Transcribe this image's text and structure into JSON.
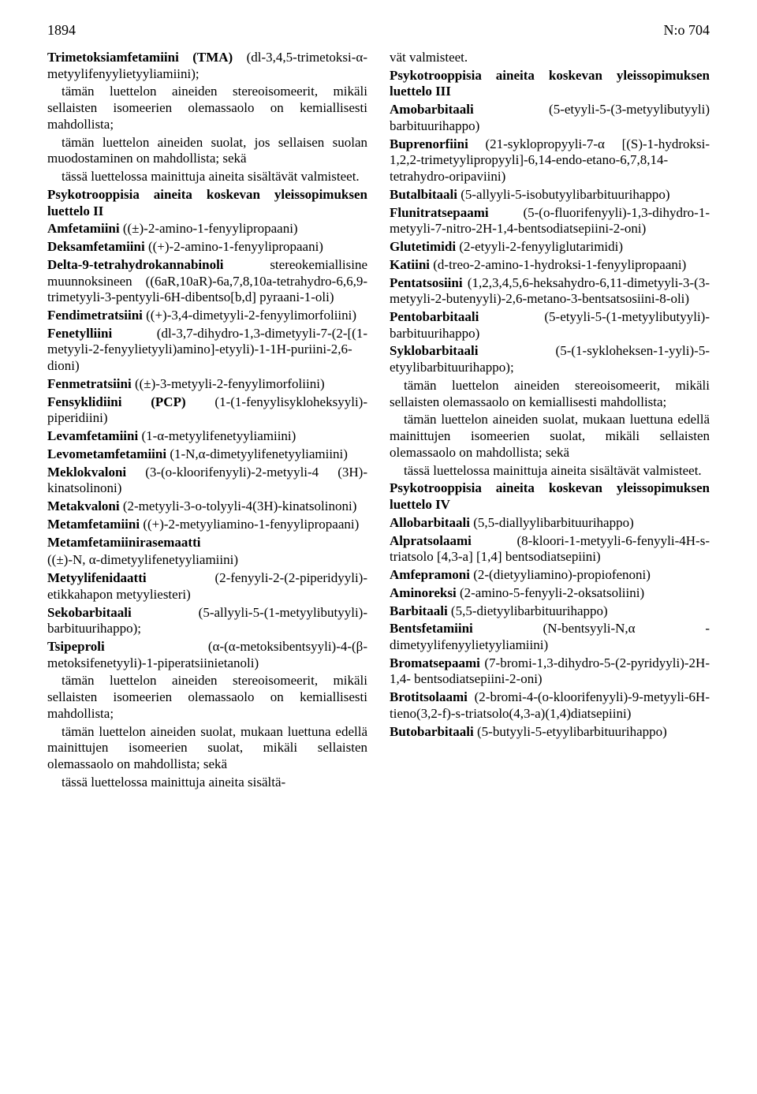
{
  "header": {
    "page_no": "1894",
    "doc_no": "N:o 704"
  },
  "col_left": {
    "intro": [
      "<b>Trimetoksiamfetamiini (TMA)</b> (dl-3,4,5-trimetoksi-α-metyylifenyylietyyliamiini);",
      "tämän luettelon aineiden stereoisomeerit, mikäli sellaisten isomeerien olemassaolo on kemiallisesti mahdollista;",
      "tämän luettelon aineiden suolat, jos sellaisen suolan muodostaminen on mahdollista; sekä",
      "tässä luettelossa mainittuja aineita sisältävät valmisteet."
    ],
    "heading2": "Psykotrooppisia aineita koskevan yleissopimuksen luettelo II",
    "list2": [
      "<b>Amfetamiini</b> ((±)-2-amino-1-fenyylipropaani)",
      "<b>Deksamfetamiini</b> ((+)-2-amino-1-fenyylipropaani)",
      "<b>Delta-9-tetrahydrokannabinoli</b> stereokemiallisine muunnoksineen ((6aR,10aR)-6a,7,8,10a-tetrahydro-6,6,9-trimetyyli-3-pentyyli-6H-dibentso[b,d] pyraani-1-oli)",
      "<b>Fendimetratsiini</b> ((+)-3,4-dimetyyli-2-fenyylimorfoliini)",
      "<b>Fenetylliini</b> (dl-3,7-dihydro-1,3-dimetyyli-7-(2-[(1-metyyli-2-fenyylietyyli)amino]-etyyli)-1-1H-puriini-2,6-dioni)",
      "<b>Fenmetratsiini</b> ((±)-3-metyyli-2-fenyylimorfoliini)",
      "<b>Fensyklidiini (PCP)</b> (1-(1-fenyylisykloheksyyli)-piperidiini)",
      "<b>Levamfetamiini</b> (1-α-metyylifenetyyliamiini)",
      "<b>Levometamfetamiini</b> (1-N,α-dimetyylifenetyyliamiini)",
      "<b>Meklokvaloni</b> (3-(o-kloorifenyyli)-2-metyyli-4 (3H)-kinatsolinoni)",
      "<b>Metakvaloni</b> (2-metyyli-3-o-tolyyli-4(3H)-kinatsolinoni)",
      "<b>Metamfetamiini</b> ((+)-2-metyyliamino-1-fenyylipropaani)",
      "<b>Metamfetamiinirasemaatti</b>",
      "((±)-N, α-dimetyylifenetyyliamiini)",
      "<b>Metyylifenidaatti</b> (2-fenyyli-2-(2-piperidyyli)-etikkahapon metyyliesteri)",
      "<b>Sekobarbitaali</b> (5-allyyli-5-(1-metyylibutyyli)-barbituurihappo);",
      "<b>Tsipeproli</b> (α-(α-metoksibentsyyli)-4-(β-metoksifenetyyli)-1-piperatsiinietanoli)",
      "tämän luettelon aineiden stereoisomeerit, mikäli sellaisten isomeerien olemassaolo on kemiallisesti mahdollista;",
      "tämän luettelon aineiden suolat, mukaan luettuna edellä mainittujen isomeerien suolat, mikäli sellaisten olemassaolo on mahdollista; sekä",
      "tässä luettelossa mainittuja aineita sisältä-"
    ]
  },
  "col_right": {
    "cont": "vät valmisteet.",
    "heading3": "Psykotrooppisia aineita koskevan yleissopimuksen luettelo III",
    "list3": [
      "<b>Amobarbitaali</b> (5-etyyli-5-(3-metyylibutyyli) barbituurihappo)",
      "<b>Buprenorfiini</b> (21-syklopropyyli-7-α [(S)-1-hydroksi-1,2,2-trimetyylipropyyli]-6,14-endo-etano-6,7,8,14-tetrahydro-oripaviini)",
      "<b>Butalbitaali</b> (5-allyyli-5-isobutyylibarbituurihappo)",
      "<b>Flunitratsepaami</b> (5-(o-fluorifenyyli)-1,3-dihydro-1-metyyli-7-nitro-2H-1,4-bentsodiatsepiini-2-oni)",
      "<b>Glutetimidi</b> (2-etyyli-2-fenyyliglutarimidi)",
      "<b>Katiini</b> (d-treo-2-amino-1-hydroksi-1-fenyylipropaani)",
      "<b>Pentatsosiini</b> (1,2,3,4,5,6-heksahydro-6,11-dimetyyli-3-(3-metyyli-2-butenyyli)-2,6-metano-3-bentsatsosiini-8-oli)",
      "<b>Pentobarbitaali</b> (5-etyyli-5-(1-metyylibutyyli)-barbituurihappo)",
      "<b>Syklobarbitaali</b> (5-(1-sykloheksen-1-yyli)-5-etyylibarbituurihappo);",
      "tämän luettelon aineiden stereoisomeerit, mikäli sellaisten olemassaolo on kemiallisesti mahdollista;",
      "tämän luettelon aineiden suolat, mukaan luettuna edellä mainittujen isomeerien suolat, mikäli sellaisten olemassaolo on mahdollista; sekä",
      "tässä luettelossa mainittuja aineita sisältävät valmisteet."
    ],
    "heading4": "Psykotrooppisia aineita koskevan yleissopimuksen luettelo IV",
    "list4": [
      "<b>Allobarbitaali</b> (5,5-diallyylibarbituurihappo)",
      "<b>Alpratsolaami</b> (8-kloori-1-metyyli-6-fenyyli-4H-s-triatsolo [4,3-a] [1,4] bentsodiatsepiini)",
      "<b>Amfepramoni</b> (2-(dietyyliamino)-propiofenoni)",
      "<b>Aminoreksi</b> (2-amino-5-fenyyli-2-oksatsoliini)",
      "<b>Barbitaali</b> (5,5-dietyylibarbituurihappo)",
      "<b>Bentsfetamiini</b> (N-bentsyyli-N,α -dimetyylifenyylietyyliamiini)",
      "<b>Bromatsepaami</b> (7-bromi-1,3-dihydro-5-(2-pyridyyli)-2H-1,4- bentsodiatsepiini-2-oni)",
      "<b>Brotitsolaami</b> (2-bromi-4-(o-kloorifenyyli)-9-metyyli-6H-tieno(3,2-f)-s-triatsolo(4,3-a)(1,4)diatsepiini)",
      "<b>Butobarbitaali</b> (5-butyyli-5-etyylibarbituurihappo)"
    ]
  }
}
